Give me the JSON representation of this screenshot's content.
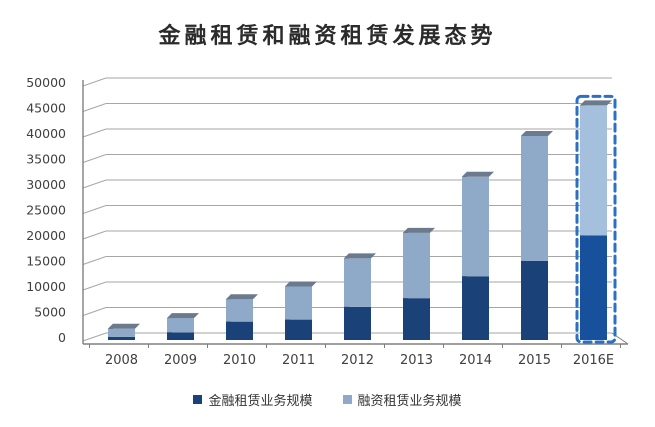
{
  "title": "金融租赁和融资租赁发展态势",
  "legend": {
    "items": [
      {
        "label": "金融租赁业务规模"
      },
      {
        "label": "融资租赁业务规模"
      }
    ]
  },
  "colors": {
    "background": "#FFFFFF",
    "title_text": "#2B2B2B",
    "tick_text": "#404040",
    "gridline": "#A6A6A6",
    "axis": "#808080",
    "series_dark_front": "#1B4278",
    "series_dark_side": "#0F2A4E",
    "series_dark_cap": "#2E5385",
    "series_light_front": "#8FAAC8",
    "series_light_side": "#4A5A6E",
    "series_light_cap": "#6B7A8D",
    "forecast_dark_fill": "#17509B",
    "forecast_light_fill": "#A5C0DC",
    "forecast_outline": "#2B70C4",
    "legend_text": "#333333"
  },
  "chart_data": {
    "type": "bar",
    "subtype": "3d-stacked-column",
    "title": "金融租赁和融资租赁发展态势",
    "categories": [
      "2008",
      "2009",
      "2010",
      "2011",
      "2012",
      "2013",
      "2014",
      "2015",
      "2016E"
    ],
    "series": [
      {
        "name": "金融租赁业务规模",
        "color": "#1B4278",
        "values": [
          600,
          1500,
          3600,
          4000,
          6500,
          8200,
          12500,
          15500,
          20500
        ]
      },
      {
        "name": "融资租赁业务规模",
        "color": "#8FAAC8",
        "values": [
          1600,
          2800,
          4400,
          6500,
          9500,
          12800,
          19500,
          24500,
          25500
        ]
      }
    ],
    "stacked_totals": [
      2200,
      4300,
      8000,
      10500,
      16000,
      21000,
      32000,
      40000,
      46000
    ],
    "forecast_category": "2016E",
    "xlabel": "",
    "ylabel": "",
    "ylim": [
      0,
      50000
    ],
    "y_tick_step": 5000,
    "y_ticks": [
      "0",
      "5000",
      "10000",
      "15000",
      "20000",
      "25000",
      "30000",
      "35000",
      "40000",
      "45000",
      "50000"
    ],
    "grid": true,
    "legend_position": "bottom"
  }
}
